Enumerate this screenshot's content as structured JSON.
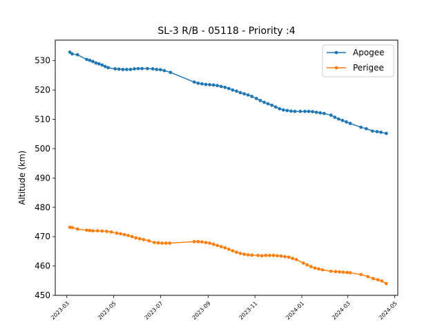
{
  "chart_data": {
    "type": "line",
    "title": "SL-3 R/B - 05118 - Priority :4",
    "xlabel": "",
    "ylabel": "Altitude (km)",
    "ylim": [
      450,
      537
    ],
    "xlim": [
      "2023-02-14",
      "2024-05-05"
    ],
    "grid": false,
    "legend_position": "top-right",
    "x_ticks": [
      "2023-03",
      "2023-05",
      "2023-07",
      "2023-09",
      "2023-11",
      "2024-01",
      "2024-03",
      "2024-05"
    ],
    "y_ticks": [
      450,
      460,
      470,
      480,
      490,
      500,
      510,
      520,
      530
    ],
    "series": [
      {
        "name": "Apogee",
        "color": "#1f77b4",
        "points": [
          [
            "2023-03-05",
            532.9
          ],
          [
            "2023-03-08",
            532.3
          ],
          [
            "2023-03-15",
            532.0
          ],
          [
            "2023-03-27",
            530.4
          ],
          [
            "2023-03-31",
            530.1
          ],
          [
            "2023-04-04",
            529.7
          ],
          [
            "2023-04-08",
            529.2
          ],
          [
            "2023-04-12",
            528.9
          ],
          [
            "2023-04-16",
            528.5
          ],
          [
            "2023-04-20",
            528.0
          ],
          [
            "2023-04-24",
            527.6
          ],
          [
            "2023-05-03",
            527.2
          ],
          [
            "2023-05-08",
            527.1
          ],
          [
            "2023-05-13",
            527.0
          ],
          [
            "2023-05-18",
            527.0
          ],
          [
            "2023-05-23",
            527.0
          ],
          [
            "2023-05-28",
            527.2
          ],
          [
            "2023-06-02",
            527.3
          ],
          [
            "2023-06-07",
            527.3
          ],
          [
            "2023-06-14",
            527.3
          ],
          [
            "2023-06-21",
            527.2
          ],
          [
            "2023-06-26",
            527.0
          ],
          [
            "2023-07-01",
            526.9
          ],
          [
            "2023-07-06",
            526.6
          ],
          [
            "2023-07-14",
            526.0
          ],
          [
            "2023-08-14",
            522.7
          ],
          [
            "2023-08-19",
            522.3
          ],
          [
            "2023-08-24",
            522.1
          ],
          [
            "2023-08-29",
            521.9
          ],
          [
            "2023-09-03",
            521.8
          ],
          [
            "2023-09-08",
            521.7
          ],
          [
            "2023-09-13",
            521.5
          ],
          [
            "2023-09-18",
            521.2
          ],
          [
            "2023-09-23",
            520.9
          ],
          [
            "2023-09-28",
            520.5
          ],
          [
            "2023-10-03",
            520.0
          ],
          [
            "2023-10-08",
            519.6
          ],
          [
            "2023-10-13",
            519.1
          ],
          [
            "2023-10-18",
            518.7
          ],
          [
            "2023-10-23",
            518.3
          ],
          [
            "2023-10-28",
            517.8
          ],
          [
            "2023-11-03",
            517.1
          ],
          [
            "2023-11-08",
            516.4
          ],
          [
            "2023-11-13",
            515.8
          ],
          [
            "2023-11-18",
            515.3
          ],
          [
            "2023-11-23",
            514.8
          ],
          [
            "2023-11-28",
            514.2
          ],
          [
            "2023-12-03",
            513.6
          ],
          [
            "2023-12-08",
            513.2
          ],
          [
            "2023-12-13",
            513.0
          ],
          [
            "2023-12-18",
            512.8
          ],
          [
            "2023-12-23",
            512.7
          ],
          [
            "2023-12-30",
            512.7
          ],
          [
            "2024-01-05",
            512.7
          ],
          [
            "2024-01-10",
            512.7
          ],
          [
            "2024-01-15",
            512.6
          ],
          [
            "2024-01-20",
            512.4
          ],
          [
            "2024-01-25",
            512.2
          ],
          [
            "2024-01-30",
            512.0
          ],
          [
            "2024-02-08",
            511.4
          ],
          [
            "2024-02-13",
            510.7
          ],
          [
            "2024-02-18",
            510.1
          ],
          [
            "2024-02-23",
            509.6
          ],
          [
            "2024-02-28",
            509.1
          ],
          [
            "2024-03-04",
            508.6
          ],
          [
            "2024-03-18",
            507.3
          ],
          [
            "2024-03-25",
            506.8
          ],
          [
            "2024-04-02",
            506.0
          ],
          [
            "2024-04-08",
            505.8
          ],
          [
            "2024-04-13",
            505.6
          ],
          [
            "2024-04-20",
            505.2
          ]
        ]
      },
      {
        "name": "Perigee",
        "color": "#ff7f0e",
        "points": [
          [
            "2023-03-05",
            473.2
          ],
          [
            "2023-03-08",
            473.1
          ],
          [
            "2023-03-15",
            472.6
          ],
          [
            "2023-03-27",
            472.2
          ],
          [
            "2023-03-31",
            472.1
          ],
          [
            "2023-04-04",
            472.0
          ],
          [
            "2023-04-10",
            472.0
          ],
          [
            "2023-04-16",
            471.9
          ],
          [
            "2023-04-22",
            471.8
          ],
          [
            "2023-04-28",
            471.6
          ],
          [
            "2023-05-05",
            471.2
          ],
          [
            "2023-05-10",
            471.0
          ],
          [
            "2023-05-15",
            470.7
          ],
          [
            "2023-05-20",
            470.4
          ],
          [
            "2023-05-25",
            470.0
          ],
          [
            "2023-05-30",
            469.6
          ],
          [
            "2023-06-04",
            469.3
          ],
          [
            "2023-06-09",
            469.0
          ],
          [
            "2023-06-16",
            468.6
          ],
          [
            "2023-06-23",
            468.0
          ],
          [
            "2023-06-28",
            467.9
          ],
          [
            "2023-07-03",
            467.8
          ],
          [
            "2023-07-08",
            467.8
          ],
          [
            "2023-07-13",
            467.8
          ],
          [
            "2023-08-14",
            468.3
          ],
          [
            "2023-08-19",
            468.3
          ],
          [
            "2023-08-24",
            468.2
          ],
          [
            "2023-08-29",
            468.0
          ],
          [
            "2023-09-03",
            467.8
          ],
          [
            "2023-09-08",
            467.4
          ],
          [
            "2023-09-13",
            467.0
          ],
          [
            "2023-09-18",
            466.6
          ],
          [
            "2023-09-23",
            466.2
          ],
          [
            "2023-09-28",
            465.7
          ],
          [
            "2023-10-03",
            465.2
          ],
          [
            "2023-10-08",
            464.7
          ],
          [
            "2023-10-13",
            464.3
          ],
          [
            "2023-10-18",
            464.0
          ],
          [
            "2023-10-23",
            463.8
          ],
          [
            "2023-10-28",
            463.7
          ],
          [
            "2023-11-05",
            463.6
          ],
          [
            "2023-11-10",
            463.5
          ],
          [
            "2023-11-15",
            463.6
          ],
          [
            "2023-11-20",
            463.6
          ],
          [
            "2023-11-25",
            463.6
          ],
          [
            "2023-11-30",
            463.5
          ],
          [
            "2023-12-05",
            463.4
          ],
          [
            "2023-12-10",
            463.2
          ],
          [
            "2023-12-15",
            463.0
          ],
          [
            "2023-12-20",
            462.6
          ],
          [
            "2023-12-25",
            462.2
          ],
          [
            "2024-01-03",
            461.0
          ],
          [
            "2024-01-08",
            460.4
          ],
          [
            "2024-01-13",
            459.8
          ],
          [
            "2024-01-18",
            459.3
          ],
          [
            "2024-01-23",
            459.0
          ],
          [
            "2024-01-28",
            458.7
          ],
          [
            "2024-02-08",
            458.2
          ],
          [
            "2024-02-14",
            458.1
          ],
          [
            "2024-02-19",
            458.0
          ],
          [
            "2024-02-24",
            457.9
          ],
          [
            "2024-02-29",
            457.8
          ],
          [
            "2024-03-04",
            457.7
          ],
          [
            "2024-03-18",
            457.1
          ],
          [
            "2024-03-27",
            456.4
          ],
          [
            "2024-04-03",
            455.7
          ],
          [
            "2024-04-09",
            455.3
          ],
          [
            "2024-04-14",
            454.9
          ],
          [
            "2024-04-20",
            454.0
          ]
        ]
      }
    ]
  }
}
